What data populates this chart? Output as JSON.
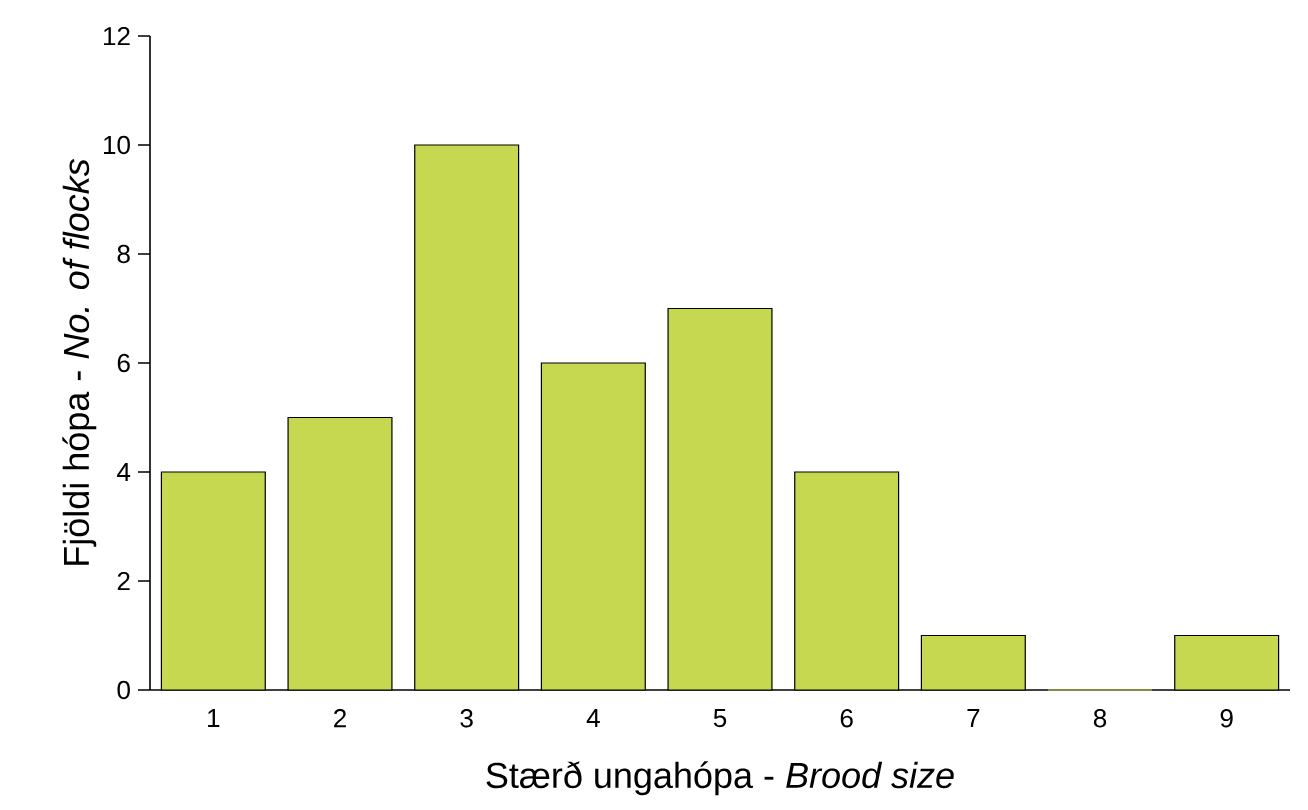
{
  "chart_data": {
    "type": "bar",
    "xlabel": "Stærð ungahópa - *Brood size*",
    "ylabel": "Fjöldi hópa - *No. of flocks*",
    "categories": [
      "1",
      "2",
      "3",
      "4",
      "5",
      "6",
      "7",
      "8",
      "9"
    ],
    "values": [
      4,
      5,
      10,
      6,
      7,
      4,
      1,
      0,
      1
    ],
    "color": "#c5d84f",
    "ylim": [
      0,
      12
    ],
    "yticks": [
      0,
      2,
      4,
      6,
      8,
      10,
      12
    ]
  }
}
